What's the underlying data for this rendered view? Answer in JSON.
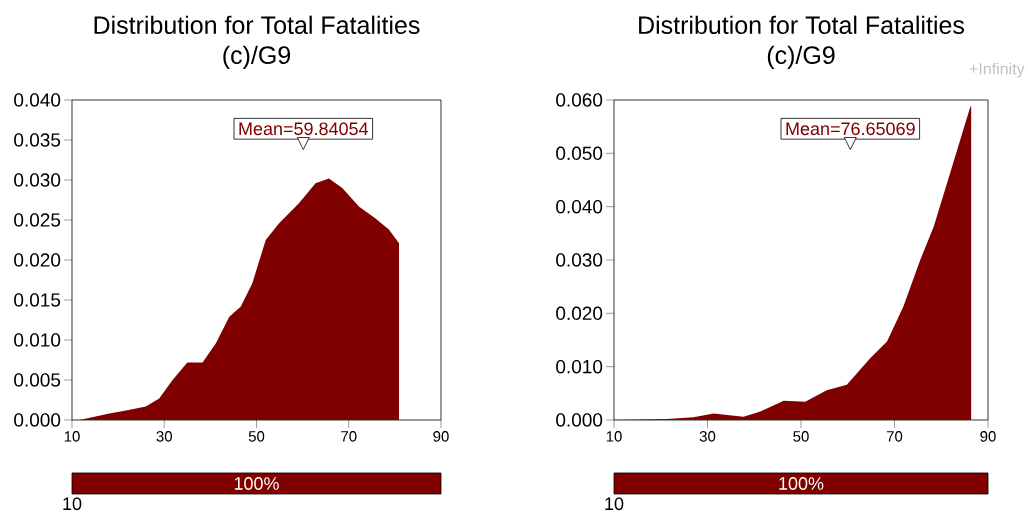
{
  "chart_data": [
    {
      "type": "area",
      "title": "Distribution for Total Fatalities",
      "subtitle": "(c)/G9",
      "color": "#800000",
      "x": [
        11.6,
        18.1,
        21.7,
        26,
        28.9,
        31.8,
        35,
        38.3,
        41.2,
        44.1,
        46.6,
        49.1,
        52,
        54.9,
        59.2,
        62.8,
        65.7,
        68.6,
        72.2,
        75.8,
        78.7,
        80.9,
        80.9
      ],
      "values": [
        0,
        0.0008,
        0.0012,
        0.0017,
        0.0027,
        0.005,
        0.0072,
        0.0072,
        0.0096,
        0.0129,
        0.0142,
        0.0171,
        0.0225,
        0.0246,
        0.0271,
        0.0296,
        0.0302,
        0.029,
        0.0267,
        0.0252,
        0.0238,
        0.0221,
        0
      ],
      "xlim": [
        10,
        90
      ],
      "ylim": [
        0,
        0.04
      ],
      "xticks": [
        10,
        30,
        50,
        70,
        90
      ],
      "yticks": [
        {
          "value": 0,
          "label": "0.000"
        },
        {
          "value": 0.005,
          "label": "0.005"
        },
        {
          "value": 0.01,
          "label": "0.010"
        },
        {
          "value": 0.015,
          "label": "0.015"
        },
        {
          "value": 0.02,
          "label": "0.020"
        },
        {
          "value": 0.025,
          "label": "0.025"
        },
        {
          "value": 0.03,
          "label": "0.030"
        },
        {
          "value": 0.035,
          "label": "0.035"
        },
        {
          "value": 0.04,
          "label": "0.040"
        }
      ],
      "annotations": [
        "Mean=59.84054",
        "100%",
        "10"
      ]
    },
    {
      "type": "area",
      "title": "Distribution for Total Fatalities",
      "subtitle": "(c)/G9",
      "color": "#800000",
      "x": [
        10,
        21.3,
        27,
        31.3,
        37.7,
        41.3,
        46.3,
        50.9,
        55.5,
        59.8,
        64.8,
        68.4,
        71.9,
        75.5,
        78.4,
        81.9,
        86.1,
        86.4,
        86.4
      ],
      "values": [
        0,
        0.0002,
        0.0005,
        0.0012,
        0.0006,
        0.0016,
        0.0036,
        0.0034,
        0.0056,
        0.0066,
        0.0116,
        0.0147,
        0.0213,
        0.03,
        0.0363,
        0.0463,
        0.0584,
        0.059,
        0
      ],
      "xlim": [
        10,
        90
      ],
      "ylim": [
        0,
        0.06
      ],
      "xticks": [
        10,
        30,
        50,
        70,
        90
      ],
      "yticks": [
        {
          "value": 0,
          "label": "0.000"
        },
        {
          "value": 0.01,
          "label": "0.010"
        },
        {
          "value": 0.02,
          "label": "0.020"
        },
        {
          "value": 0.03,
          "label": "0.030"
        },
        {
          "value": 0.04,
          "label": "0.040"
        },
        {
          "value": 0.05,
          "label": "0.050"
        },
        {
          "value": 0.06,
          "label": "0.060"
        }
      ],
      "annotations": [
        "Mean=76.65069",
        "100%",
        "10",
        "+Infinity"
      ]
    }
  ]
}
